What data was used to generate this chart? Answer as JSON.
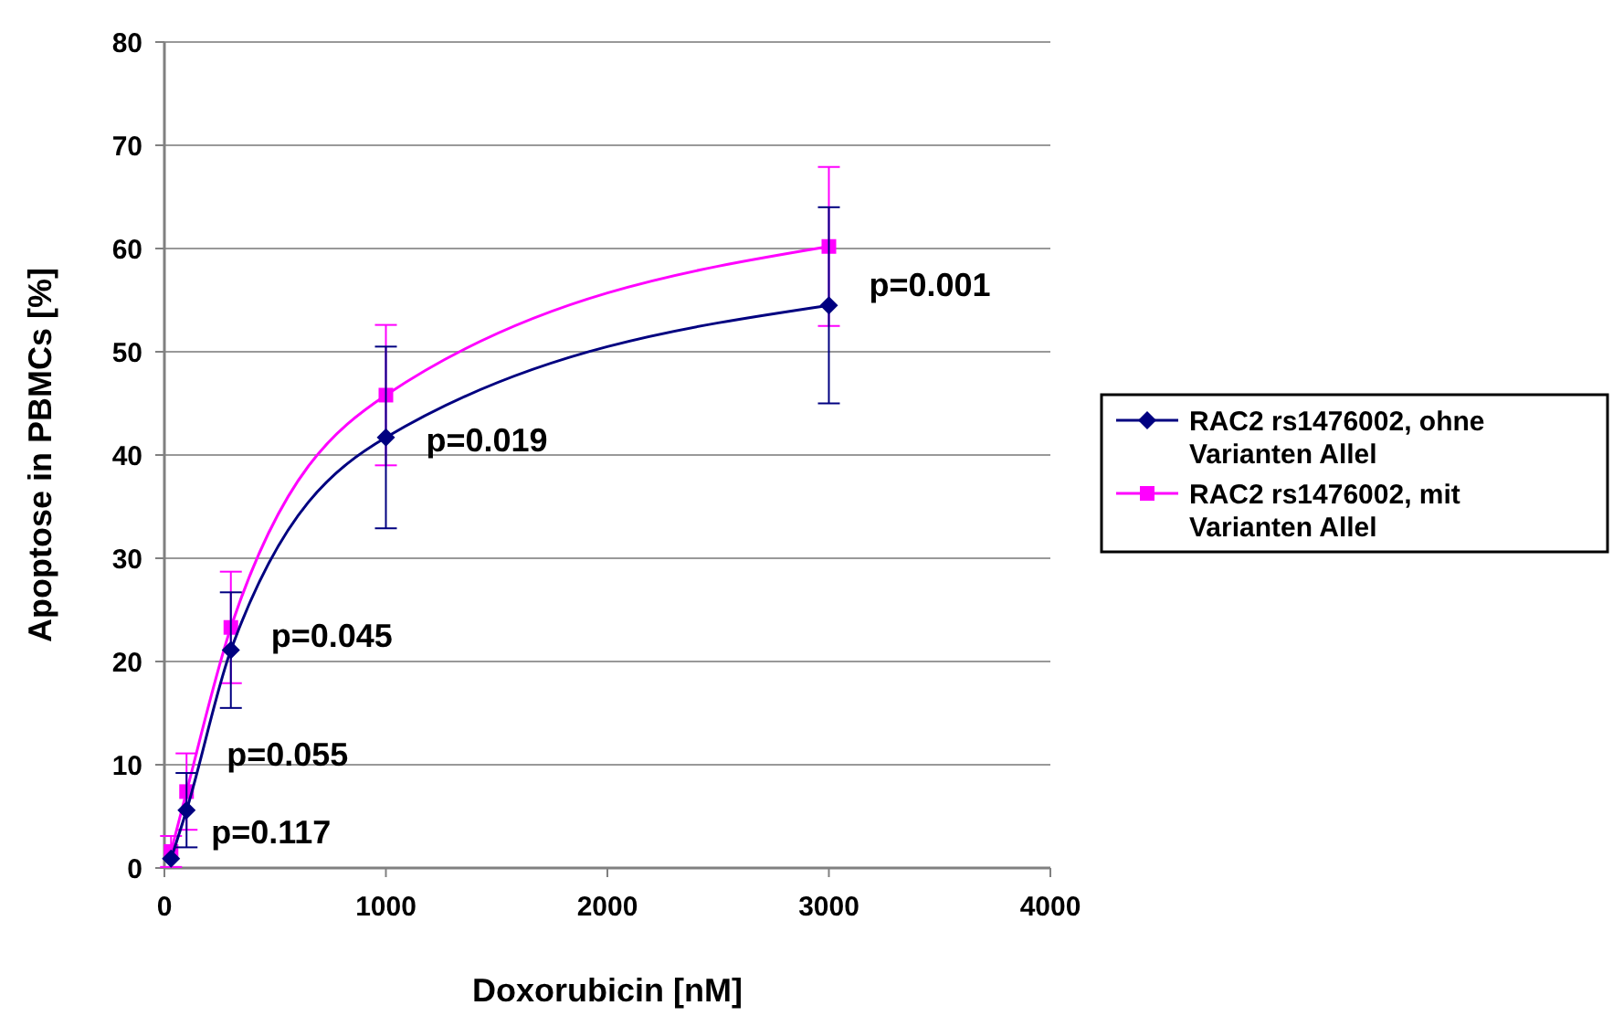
{
  "chart_data": {
    "type": "line",
    "xlabel": "Doxorubicin [nM]",
    "ylabel": "Apoptose in PBMCs [%]",
    "xlim": [
      0,
      4000
    ],
    "xticks": [
      0,
      1000,
      2000,
      3000,
      4000
    ],
    "ylim": [
      0,
      80
    ],
    "yticks": [
      0,
      10,
      20,
      30,
      40,
      50,
      60,
      70,
      80
    ],
    "grid": "y",
    "legend": "right",
    "line_style": "solid",
    "x": [
      30,
      100,
      300,
      1000,
      3000
    ],
    "series": [
      {
        "name": "RAC2 rs1476002, ohne Varianten Allel",
        "color": "#000080",
        "marker": "diamond",
        "values": [
          0.9,
          5.6,
          21.1,
          41.7,
          54.5
        ],
        "errors": [
          null,
          3.6,
          5.6,
          8.8,
          9.5
        ]
      },
      {
        "name": "RAC2 rs1476002, mit Varianten Allel",
        "color": "#ff00ff",
        "marker": "square",
        "values": [
          1.6,
          7.4,
          23.3,
          45.8,
          60.2
        ],
        "errors": [
          1.5,
          3.7,
          5.4,
          6.8,
          7.7
        ]
      }
    ],
    "annotations": [
      {
        "text": "p=0.117",
        "x": 30,
        "y": 3.5
      },
      {
        "text": "p=0.055",
        "x": 100,
        "y": 11
      },
      {
        "text": "p=0.045",
        "x": 300,
        "y": 22.5
      },
      {
        "text": "p=0.019",
        "x": 1000,
        "y": 41.5
      },
      {
        "text": "p=0.001",
        "x": 3000,
        "y": 56.5
      }
    ]
  }
}
